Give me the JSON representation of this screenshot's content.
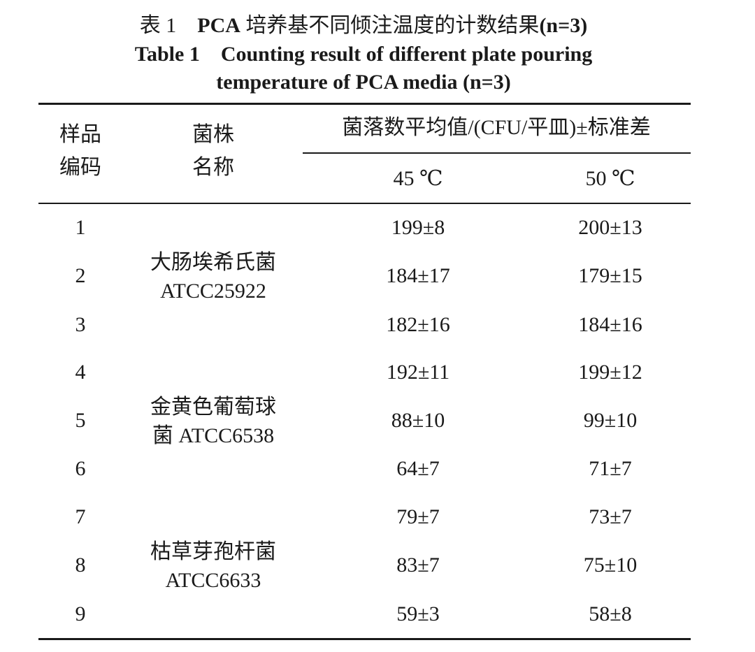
{
  "title": {
    "cn_label": "表 1",
    "cn_prefix": "PCA",
    "cn_text": "培养基不同倾注温度的计数结果",
    "cn_n": "(n=3)",
    "en_line1": "Table 1    Counting result of different plate pouring",
    "en_line2": "temperature of PCA media (n=3)"
  },
  "table": {
    "headers": {
      "sample_code": [
        "样品",
        "编码"
      ],
      "strain_name": [
        "菌株",
        "名称"
      ],
      "group": "菌落数平均值/(CFU/平皿)±标准差",
      "temp_45": "45 ℃",
      "temp_50": "50 ℃"
    },
    "strains": [
      {
        "name": [
          "大肠埃希氏菌",
          "ATCC25922"
        ]
      },
      {
        "name": [
          "金黄色葡萄球",
          "菌 ATCC6538"
        ]
      },
      {
        "name": [
          "枯草芽孢杆菌",
          "ATCC6633"
        ]
      }
    ],
    "rows": [
      {
        "code": "1",
        "t45": "199±8",
        "t50": "200±13"
      },
      {
        "code": "2",
        "t45": "184±17",
        "t50": "179±15"
      },
      {
        "code": "3",
        "t45": "182±16",
        "t50": "184±16"
      },
      {
        "code": "4",
        "t45": "192±11",
        "t50": "199±12"
      },
      {
        "code": "5",
        "t45": "88±10",
        "t50": "99±10"
      },
      {
        "code": "6",
        "t45": "64±7",
        "t50": "71±7"
      },
      {
        "code": "7",
        "t45": "79±7",
        "t50": "73±7"
      },
      {
        "code": "8",
        "t45": "83±7",
        "t50": "75±10"
      },
      {
        "code": "9",
        "t45": "59±3",
        "t50": "58±8"
      }
    ]
  }
}
